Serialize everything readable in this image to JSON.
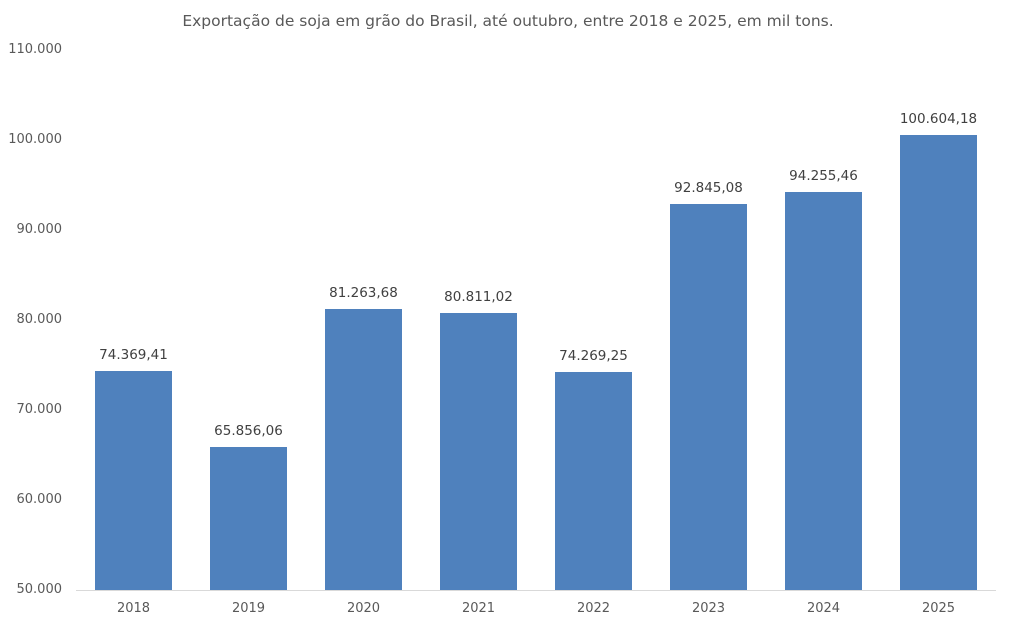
{
  "chart_data": {
    "type": "bar",
    "title": "Exportação de soja em grão do Brasil, até outubro, entre 2018 e 2025, em mil tons.",
    "xlabel": "",
    "ylabel": "",
    "categories": [
      "2018",
      "2019",
      "2020",
      "2021",
      "2022",
      "2023",
      "2024",
      "2025"
    ],
    "values": [
      74369.41,
      65856.06,
      81263.68,
      80811.02,
      74269.25,
      92845.08,
      94255.46,
      100604.18
    ],
    "value_labels": [
      "74.369,41",
      "65.856,06",
      "81.263,68",
      "80.811,02",
      "74.269,25",
      "92.845,08",
      "94.255,46",
      "100.604,18"
    ],
    "ylim": [
      50000,
      110000
    ],
    "yticks": [
      50000,
      60000,
      70000,
      80000,
      90000,
      100000,
      110000
    ],
    "ytick_labels": [
      "50.000",
      "60.000",
      "70.000",
      "80.000",
      "90.000",
      "100.000",
      "110.000"
    ],
    "grid": false,
    "legend": null,
    "bar_color": "#4f81bd"
  }
}
